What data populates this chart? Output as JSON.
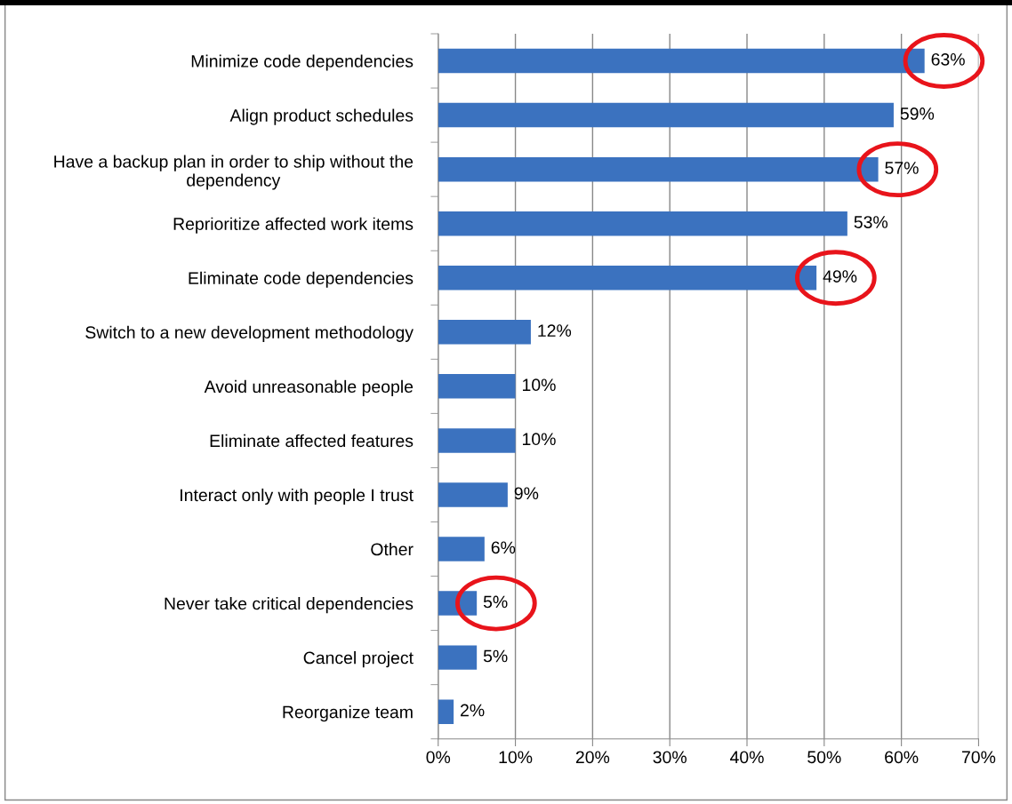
{
  "chart_data": {
    "type": "bar",
    "orientation": "horizontal",
    "categories": [
      "Minimize code dependencies",
      "Align product schedules",
      "Have a backup plan in order to ship without the dependency",
      "Reprioritize affected work items",
      "Eliminate code dependencies",
      "Switch to a new development methodology",
      "Avoid unreasonable people",
      "Eliminate affected features",
      "Interact only with people I trust",
      "Other",
      "Never take critical dependencies",
      "Cancel project",
      "Reorganize team"
    ],
    "values": [
      63,
      59,
      57,
      53,
      49,
      12,
      10,
      10,
      9,
      6,
      5,
      5,
      2
    ],
    "value_labels": [
      "63%",
      "59%",
      "57%",
      "53%",
      "49%",
      "12%",
      "10%",
      "10%",
      "9%",
      "6%",
      "5%",
      "5%",
      "2%"
    ],
    "color": "#3b72bf",
    "xlim": [
      0,
      70
    ],
    "xticks": [
      {
        "value": 0,
        "label": "0%"
      },
      {
        "value": 10,
        "label": "10%"
      },
      {
        "value": 20,
        "label": "20%"
      },
      {
        "value": 30,
        "label": "30%"
      },
      {
        "value": 40,
        "label": "40%"
      },
      {
        "value": 50,
        "label": "50%"
      },
      {
        "value": 60,
        "label": "60%"
      },
      {
        "value": 70,
        "label": "70%"
      }
    ],
    "grid": "x"
  }
}
